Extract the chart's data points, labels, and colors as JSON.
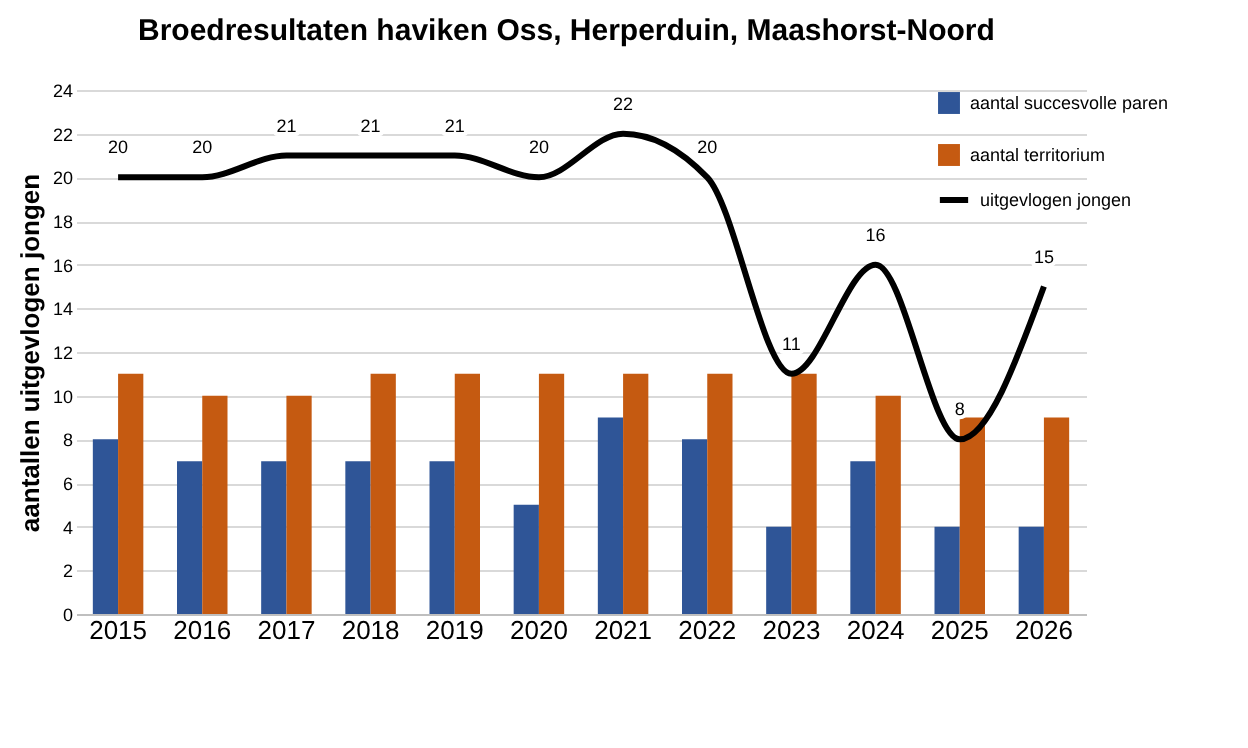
{
  "chart_data": {
    "type": "bar",
    "title": "Broedresultaten haviken Oss, Herperduin, Maashorst-Noord",
    "ylabel": "aantallen uitgevlogen jongen",
    "categories": [
      "2015",
      "2016",
      "2017",
      "2018",
      "2019",
      "2020",
      "2021",
      "2022",
      "2023",
      "2024",
      "2025",
      "2026"
    ],
    "series": [
      {
        "name": "aantal succesvolle paren",
        "color": "#2f5597",
        "values": [
          8,
          7,
          7,
          7,
          7,
          5,
          9,
          8,
          4,
          7,
          4,
          4
        ]
      },
      {
        "name": "aantal territorium",
        "color": "#c55a11",
        "values": [
          11,
          10,
          10,
          11,
          11,
          11,
          11,
          11,
          11,
          10,
          9,
          9
        ]
      },
      {
        "name": "uitgevlogen jongen",
        "type": "line",
        "color": "#000000",
        "values": [
          20,
          20,
          21,
          21,
          21,
          20,
          22,
          20,
          11,
          16,
          8,
          15
        ],
        "value_labels": [
          "20",
          "20",
          "21",
          "21",
          "21",
          "20",
          "22",
          "20",
          "11",
          "16",
          "8",
          "15"
        ]
      }
    ],
    "ylim": [
      0,
      24
    ],
    "yticks": [
      0,
      2,
      4,
      6,
      8,
      10,
      12,
      14,
      16,
      18,
      20,
      22,
      24
    ],
    "grid": "y",
    "legend": "top right",
    "marker": "none",
    "line_style": "solid"
  }
}
